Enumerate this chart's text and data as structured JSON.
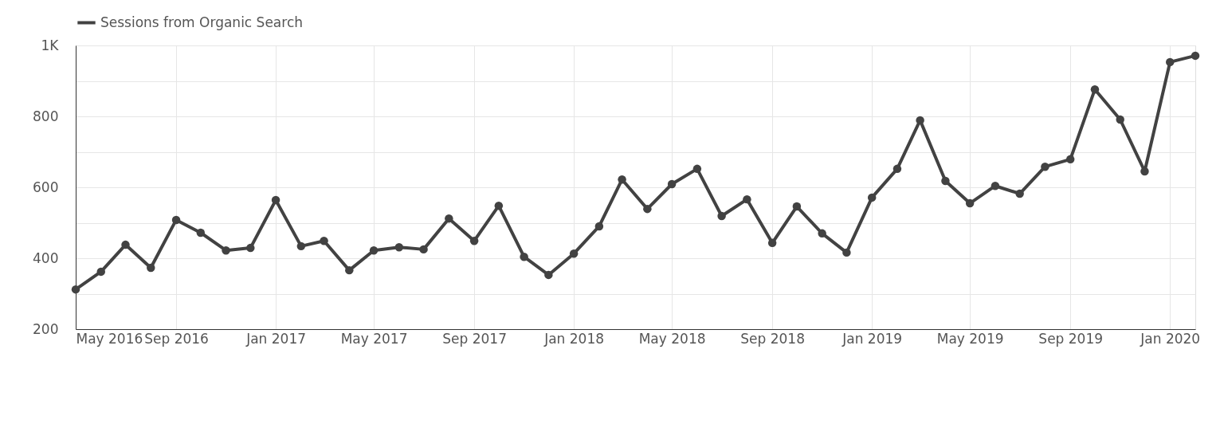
{
  "chart_data": {
    "type": "line",
    "x": [
      "2016-05",
      "2016-06",
      "2016-07",
      "2016-08",
      "2016-09",
      "2016-10",
      "2016-11",
      "2016-12",
      "2017-01",
      "2017-02",
      "2017-03",
      "2017-04",
      "2017-05",
      "2017-06",
      "2017-07",
      "2017-08",
      "2017-09",
      "2017-10",
      "2017-11",
      "2017-12",
      "2018-01",
      "2018-02",
      "2018-03",
      "2018-04",
      "2018-05",
      "2018-06",
      "2018-07",
      "2018-08",
      "2018-09",
      "2018-10",
      "2018-11",
      "2018-12",
      "2019-01",
      "2019-02",
      "2019-03",
      "2019-04",
      "2019-05",
      "2019-06",
      "2019-07",
      "2019-08",
      "2019-09",
      "2019-10",
      "2019-11",
      "2019-12",
      "2020-01",
      "2020-02"
    ],
    "series": [
      {
        "name": "Sessions from Organic Search",
        "color": "#424242",
        "values": [
          312,
          362,
          438,
          373,
          508,
          472,
          422,
          429,
          564,
          434,
          449,
          366,
          422,
          431,
          425,
          512,
          449,
          548,
          404,
          353,
          413,
          490,
          622,
          539,
          609,
          652,
          519,
          566,
          443,
          546,
          470,
          416,
          571,
          652,
          789,
          618,
          555,
          604,
          582,
          658,
          679,
          876,
          791,
          645,
          953,
          971
        ]
      }
    ],
    "xlim": [
      "2016-05",
      "2020-02"
    ],
    "xticks": [
      {
        "value": "2016-05",
        "label": "May 2016"
      },
      {
        "value": "2016-09",
        "label": "Sep 2016"
      },
      {
        "value": "2017-01",
        "label": "Jan 2017"
      },
      {
        "value": "2017-05",
        "label": "May 2017"
      },
      {
        "value": "2017-09",
        "label": "Sep 2017"
      },
      {
        "value": "2018-01",
        "label": "Jan 2018"
      },
      {
        "value": "2018-05",
        "label": "May 2018"
      },
      {
        "value": "2018-09",
        "label": "Sep 2018"
      },
      {
        "value": "2019-01",
        "label": "Jan 2019"
      },
      {
        "value": "2019-05",
        "label": "May 2019"
      },
      {
        "value": "2019-09",
        "label": "Sep 2019"
      },
      {
        "value": "2020-01",
        "label": "Jan 2020"
      }
    ],
    "ylim": [
      200,
      1000
    ],
    "yticks": [
      200,
      {
        "value": 300,
        "label": null
      },
      400,
      {
        "value": 500,
        "label": null
      },
      600,
      {
        "value": 700,
        "label": null
      },
      800,
      {
        "value": 900,
        "label": null
      },
      {
        "value": 1000,
        "label": "1K"
      }
    ],
    "grid": true,
    "legend": "top left",
    "marker": "circle",
    "line_style": "solid"
  }
}
